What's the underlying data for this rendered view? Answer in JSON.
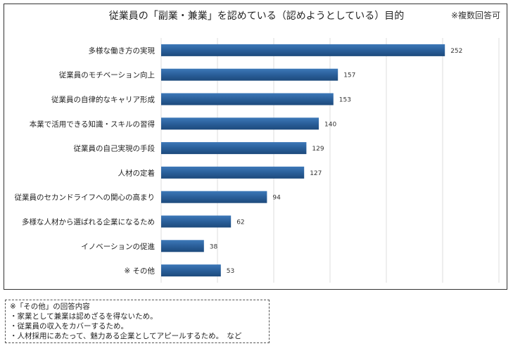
{
  "chart_data": {
    "type": "bar",
    "orientation": "horizontal",
    "title": "従業員の「副業・兼業」を認めている（認めようとしている）目的",
    "note": "※複数回答可",
    "categories": [
      "多様な働き方の実現",
      "従業員のモチベーション向上",
      "従業員の自律的なキャリア形成",
      "本業で活用できる知識・スキルの習得",
      "従業員の自己実現の手段",
      "人材の定着",
      "従業員のセカンドライフへの関心の高まり",
      "多様な人材から選ばれる企業になるため",
      "イノベーションの促進",
      "※ その他"
    ],
    "values": [
      252,
      157,
      153,
      140,
      129,
      127,
      94,
      62,
      38,
      53
    ],
    "xlim": [
      0,
      300
    ],
    "grid": true,
    "bar_color": "#2a5f9a"
  },
  "footnote": {
    "heading": "※「その他」の回答内容",
    "lines": [
      "・家業として兼業は認めざるを得ないため。",
      "・従業員の収入をカバーするため。",
      "・人材採用にあたって、魅力ある企業としてアピールするため。　など"
    ]
  }
}
